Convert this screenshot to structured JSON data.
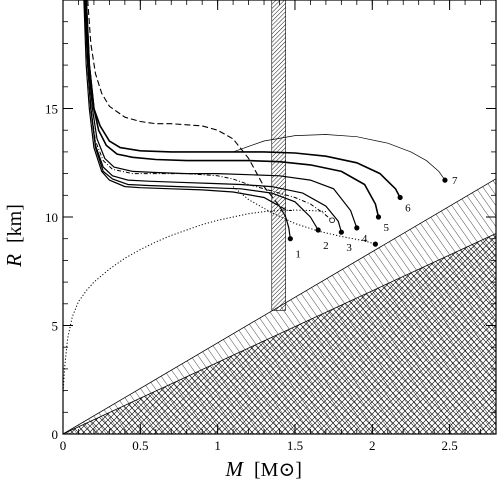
{
  "chart_data": {
    "type": "line",
    "xlabel": "M",
    "xunit": "[M⊙]",
    "ylabel": "R",
    "yunit": "[km]",
    "xlim": [
      0,
      2.8
    ],
    "ylim": [
      0,
      20
    ],
    "xticks": [
      "0",
      "0.5",
      "1",
      "1.5",
      "2",
      "2.5"
    ],
    "xtick_values": [
      0,
      0.5,
      1,
      1.5,
      2,
      2.5
    ],
    "yticks": [
      "0",
      "5",
      "10",
      "15"
    ],
    "ytick_values": [
      0,
      5,
      10,
      15
    ],
    "shaded_regions": [
      {
        "kind": "vertical-band",
        "pattern": "dense-diagonal",
        "x": [
          1.35,
          1.44
        ],
        "y": [
          5.7,
          20
        ]
      },
      {
        "kind": "wedge-above-line",
        "pattern": "diagonal",
        "boundary": "R = 4.2 M",
        "xlim": [
          0,
          2.8
        ]
      },
      {
        "kind": "wedge-above-line",
        "pattern": "crosshatch",
        "boundary": "R = 3.3 M",
        "xlim": [
          0,
          2.8
        ]
      }
    ],
    "series": [
      {
        "name": "1",
        "style": "solid",
        "width": 1.2,
        "end_marker": "filled",
        "x": [
          0.135,
          0.15,
          0.17,
          0.2,
          0.25,
          0.3,
          0.4,
          0.5,
          0.7,
          0.9,
          1.1,
          1.3,
          1.4,
          1.44,
          1.46,
          1.47
        ],
        "y": [
          20,
          17,
          15,
          13.2,
          12.1,
          11.7,
          11.4,
          11.35,
          11.3,
          11.25,
          11.15,
          10.9,
          10.5,
          10.0,
          9.5,
          9.0
        ]
      },
      {
        "name": "2",
        "style": "solid",
        "width": 1.2,
        "end_marker": "filled",
        "x": [
          0.14,
          0.16,
          0.18,
          0.21,
          0.26,
          0.32,
          0.42,
          0.55,
          0.75,
          0.95,
          1.15,
          1.35,
          1.5,
          1.6,
          1.65
        ],
        "y": [
          20,
          17,
          15,
          13.2,
          12.1,
          11.75,
          11.5,
          11.45,
          11.4,
          11.35,
          11.3,
          11.1,
          10.7,
          10.0,
          9.4
        ]
      },
      {
        "name": "3",
        "style": "solid",
        "width": 1.2,
        "end_marker": "filled",
        "x": [
          0.14,
          0.16,
          0.18,
          0.21,
          0.26,
          0.32,
          0.42,
          0.55,
          0.75,
          0.95,
          1.15,
          1.35,
          1.55,
          1.7,
          1.78,
          1.8
        ],
        "y": [
          20,
          17,
          15,
          13.3,
          12.3,
          11.9,
          11.7,
          11.65,
          11.6,
          11.55,
          11.5,
          11.4,
          11.1,
          10.5,
          9.8,
          9.3
        ]
      },
      {
        "name": "4",
        "style": "solid",
        "width": 1.2,
        "end_marker": "filled",
        "x": [
          0.145,
          0.165,
          0.19,
          0.22,
          0.27,
          0.33,
          0.45,
          0.6,
          0.8,
          1.0,
          1.2,
          1.4,
          1.6,
          1.75,
          1.86,
          1.9
        ],
        "y": [
          20,
          17,
          15,
          13.6,
          12.7,
          12.3,
          12.1,
          12.05,
          12.0,
          12.0,
          11.95,
          11.9,
          11.7,
          11.3,
          10.3,
          9.5
        ]
      },
      {
        "name": "5",
        "style": "solid",
        "width": 1.6,
        "end_marker": "filled",
        "x": [
          0.15,
          0.17,
          0.2,
          0.23,
          0.28,
          0.35,
          0.45,
          0.6,
          0.8,
          1.0,
          1.2,
          1.4,
          1.6,
          1.8,
          1.95,
          2.02,
          2.04
        ],
        "y": [
          20,
          17,
          15,
          14.0,
          13.3,
          12.9,
          12.75,
          12.65,
          12.6,
          12.6,
          12.6,
          12.55,
          12.4,
          12.1,
          11.5,
          10.6,
          10.0
        ]
      },
      {
        "name": "6",
        "style": "solid",
        "width": 1.6,
        "end_marker": "filled",
        "x": [
          0.15,
          0.17,
          0.2,
          0.24,
          0.3,
          0.37,
          0.5,
          0.7,
          0.9,
          1.1,
          1.3,
          1.5,
          1.7,
          1.9,
          2.05,
          2.15,
          2.18
        ],
        "y": [
          20,
          17,
          15,
          14.2,
          13.5,
          13.2,
          13.05,
          13.0,
          13.0,
          13.0,
          13.0,
          12.95,
          12.8,
          12.5,
          12.0,
          11.3,
          10.9
        ]
      },
      {
        "name": "7",
        "style": "solid",
        "width": 0.7,
        "end_marker": "filled",
        "x": [
          1.1,
          1.3,
          1.5,
          1.7,
          1.9,
          2.1,
          2.25,
          2.35,
          2.43,
          2.47
        ],
        "y": [
          13.0,
          13.5,
          13.75,
          13.8,
          13.7,
          13.4,
          13.0,
          12.6,
          12.1,
          11.7
        ]
      },
      {
        "name": "",
        "style": "dashed",
        "width": 1.1,
        "end_marker": "none",
        "x": [
          0.16,
          0.18,
          0.21,
          0.25,
          0.3,
          0.4,
          0.5,
          0.6,
          0.7,
          0.8,
          0.9,
          1.0,
          1.1,
          1.2,
          1.3,
          1.4,
          1.45,
          1.48
        ],
        "y": [
          20,
          18,
          16.6,
          15.7,
          15.1,
          14.6,
          14.4,
          14.3,
          14.3,
          14.25,
          14.2,
          14.0,
          13.6,
          12.7,
          11.4,
          10.5,
          10.3,
          10.3
        ]
      },
      {
        "name": "",
        "style": "dash-dot",
        "width": 1.0,
        "end_marker": "open",
        "x": [
          0.14,
          0.16,
          0.18,
          0.21,
          0.26,
          0.32,
          0.45,
          0.6,
          0.8,
          1.0,
          1.1,
          1.2,
          1.35,
          1.5,
          1.6,
          1.68,
          1.74
        ],
        "y": [
          20,
          17,
          15,
          13.5,
          12.6,
          12.2,
          12.0,
          12.0,
          12.0,
          11.9,
          11.75,
          11.5,
          11.2,
          10.9,
          10.6,
          10.2,
          9.85
        ]
      },
      {
        "name": "",
        "style": "dotted",
        "width": 1.0,
        "end_marker": "none",
        "x": [
          0,
          0.01,
          0.03,
          0.06,
          0.1,
          0.15,
          0.2,
          0.3,
          0.4,
          0.5,
          0.6,
          0.7,
          0.8,
          0.9,
          1.0,
          1.1,
          1.2,
          1.3,
          1.4,
          1.5,
          1.6,
          1.7
        ],
        "y": [
          1.8,
          3.0,
          4.4,
          5.4,
          6.1,
          6.6,
          7.0,
          7.6,
          8.1,
          8.5,
          8.85,
          9.15,
          9.4,
          9.65,
          9.85,
          10.0,
          10.15,
          10.25,
          10.3,
          10.32,
          10.3,
          10.25
        ]
      },
      {
        "name": "",
        "style": "dotted",
        "width": 1.0,
        "end_marker": "filled",
        "x": [
          1.1,
          1.2,
          1.35,
          1.5,
          1.65,
          1.8,
          1.95,
          2.02
        ],
        "y": [
          11.4,
          10.8,
          10.2,
          9.7,
          9.35,
          9.1,
          8.9,
          8.75
        ]
      }
    ]
  }
}
